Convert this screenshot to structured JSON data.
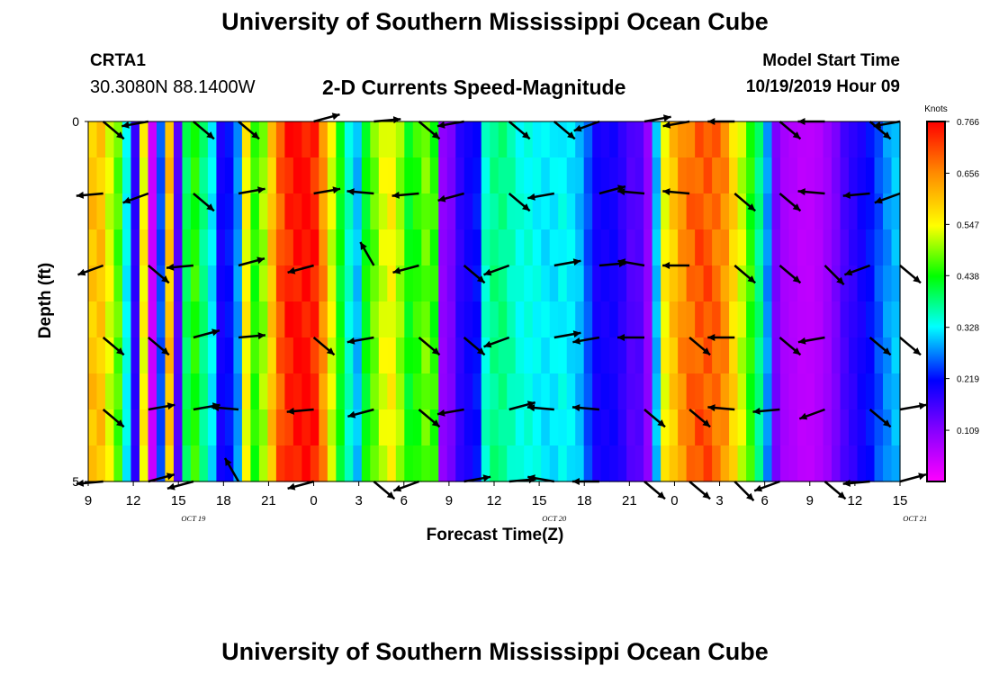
{
  "header": {
    "title": "University of Southern Mississippi Ocean Cube",
    "station": "CRTA1",
    "coords": "30.3080N 88.1400W",
    "subtitle": "2-D Currents Speed-Magnitude",
    "model_start_label": "Model Start Time",
    "model_start_value": "10/19/2019 Hour 09"
  },
  "footer": {
    "title": "University of Southern Mississippi Ocean Cube"
  },
  "chart_data": {
    "type": "heatmap",
    "title": "2-D Currents Speed-Magnitude",
    "xlabel": "Forecast Time(Z)",
    "ylabel": "Depth (ft)",
    "x_tick_labels": [
      "9",
      "12",
      "15",
      "18",
      "21",
      "0",
      "3",
      "6",
      "9",
      "12",
      "15",
      "18",
      "21",
      "0",
      "3",
      "6",
      "9",
      "12",
      "15"
    ],
    "x_date_labels": [
      {
        "label": "OCT 19",
        "hours_from_start": 7
      },
      {
        "label": "OCT 20",
        "hours_from_start": 31
      },
      {
        "label": "OCT 21",
        "hours_from_start": 55
      }
    ],
    "x_range_hours": [
      0,
      54
    ],
    "y_tick_labels": [
      "0",
      "5"
    ],
    "ylim": [
      0,
      5
    ],
    "colorbar": {
      "unit": "Knots",
      "ticks": [
        0.766,
        0.656,
        0.547,
        0.438,
        0.328,
        0.219,
        0.109
      ],
      "range": [
        0,
        0.766
      ]
    },
    "speed_columns_knots": [
      0.6,
      0.6,
      0.53,
      0.47,
      0.33,
      0.18,
      0.55,
      0.05,
      0.25,
      0.6,
      0.15,
      0.4,
      0.45,
      0.38,
      0.32,
      0.2,
      0.22,
      0.28,
      0.55,
      0.45,
      0.5,
      0.6,
      0.7,
      0.74,
      0.76,
      0.76,
      0.74,
      0.65,
      0.53,
      0.43,
      0.35,
      0.3,
      0.43,
      0.48,
      0.53,
      0.55,
      0.5,
      0.43,
      0.45,
      0.48,
      0.45,
      0.1,
      0.12,
      0.18,
      0.2,
      0.22,
      0.35,
      0.38,
      0.38,
      0.36,
      0.34,
      0.34,
      0.33,
      0.32,
      0.32,
      0.33,
      0.32,
      0.3,
      0.25,
      0.2,
      0.2,
      0.2,
      0.18,
      0.15,
      0.15,
      0.1,
      0.3,
      0.55,
      0.6,
      0.65,
      0.68,
      0.7,
      0.7,
      0.68,
      0.65,
      0.58,
      0.52,
      0.45,
      0.38,
      0.28,
      0.12,
      0.08,
      0.07,
      0.06,
      0.06,
      0.07,
      0.09,
      0.12,
      0.16,
      0.18,
      0.2,
      0.22,
      0.25,
      0.28,
      0.3
    ],
    "vector_depths_ft": [
      0,
      1,
      2,
      3,
      4,
      5
    ],
    "vector_hours": [
      1,
      4,
      7,
      10,
      15,
      19,
      22,
      25,
      28,
      31,
      34,
      37,
      40,
      43,
      46,
      49,
      52,
      54
    ],
    "vector_direction_deg": [
      -40,
      -45,
      185,
      190,
      200,
      200,
      -40,
      -40,
      -40,
      -40,
      185,
      10,
      15,
      15,
      10,
      5,
      195,
      175,
      -40,
      120,
      185,
      190,
      195,
      195,
      -40,
      -40,
      -40,
      -40,
      200,
      190,
      200,
      10,
      15,
      10,
      5,
      175,
      190,
      170,
      175,
      180,
      180,
      -40,
      -40,
      -40,
      -40,
      180,
      -40,
      175
    ]
  }
}
